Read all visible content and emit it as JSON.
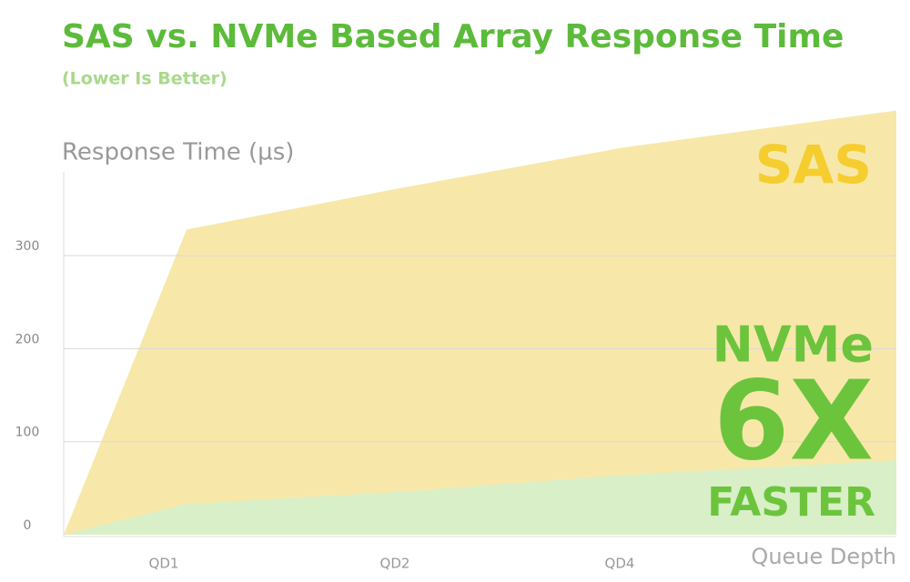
{
  "chart_data": {
    "type": "area",
    "title": "SAS vs. NVMe Based Array Response Time",
    "subtitle": "(Lower Is Better)",
    "y_label": "Response Time (µs)",
    "x_label": "Queue Depth",
    "categories": [
      null,
      "QD1",
      "QD2",
      "QD4",
      null
    ],
    "series": [
      {
        "name": "SAS",
        "color": "#f7e8aa",
        "label_color": "#f6cd2f",
        "values": [
          0,
          328,
          372,
          416,
          456
        ]
      },
      {
        "name": "NVMe",
        "color": "#d9efc8",
        "label_color": "#6cc43c",
        "values": [
          0,
          33,
          46,
          64,
          80
        ]
      }
    ],
    "annotations": [
      "6X",
      "FASTER"
    ],
    "ylim": [
      0,
      390
    ],
    "yticks": [
      0,
      100,
      200,
      300
    ],
    "grid": true
  }
}
